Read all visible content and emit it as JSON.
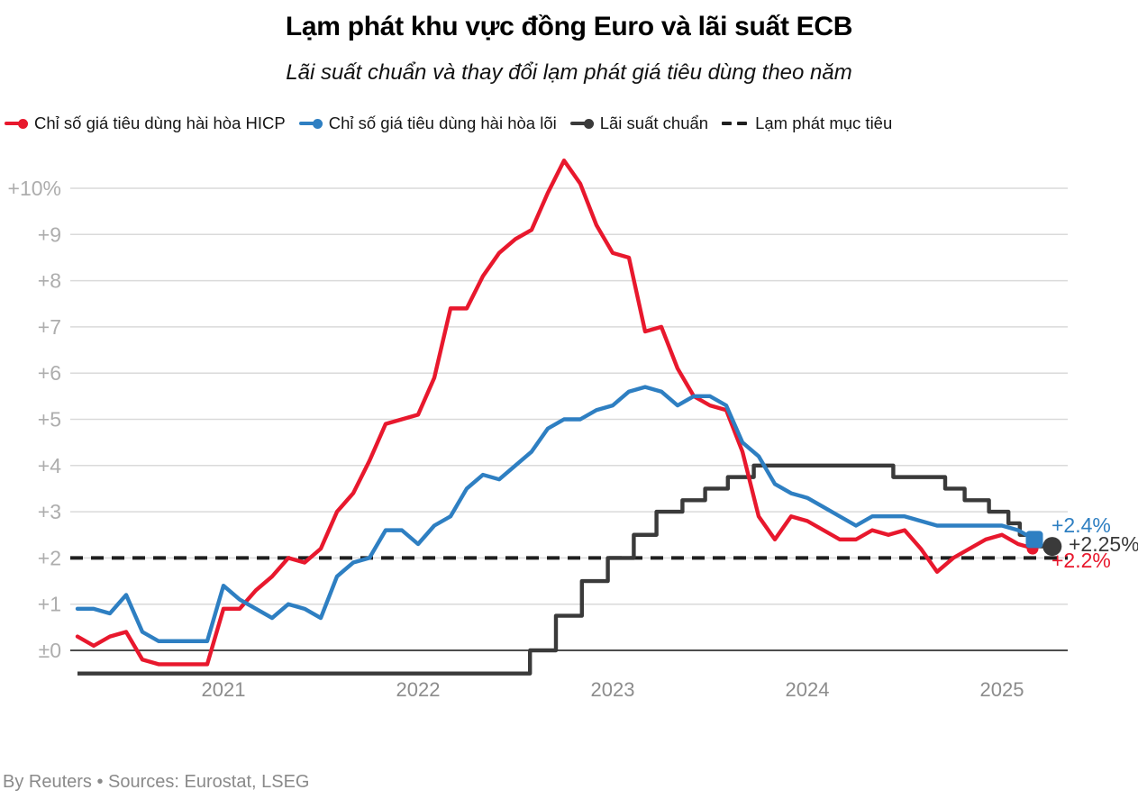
{
  "header": {
    "title": "Lạm phát khu vực đồng Euro và lãi suất ECB",
    "subtitle": "Lãi suất chuẩn và thay đổi lạm phát giá tiêu dùng theo năm"
  },
  "legend": [
    {
      "label": "Chỉ số giá tiêu dùng hài hòa HICP",
      "color": "#e8182d",
      "marker": "line-dot"
    },
    {
      "label": "Chỉ số giá tiêu dùng hài hòa lõi",
      "color": "#2e7fc2",
      "marker": "line-dot"
    },
    {
      "label": "Lãi suất chuẩn",
      "color": "#3a3a3a",
      "marker": "line-dot"
    },
    {
      "label": "Lạm phát mục tiêu",
      "color": "#1f1f1f",
      "marker": "dashes"
    }
  ],
  "chart_data": {
    "type": "line",
    "title": "Lạm phát khu vực đồng Euro và lãi suất ECB",
    "subtitle": "Lãi suất chuẩn và thay đổi lạm phát giá tiêu dùng theo năm",
    "x_start": "2020-04",
    "x_end": "2025-04",
    "grid": true,
    "legend_position": "top-left",
    "ylim": [
      -0.85,
      10.9
    ],
    "year_ticks": [
      {
        "label": "2021",
        "month_index": 9
      },
      {
        "label": "2022",
        "month_index": 21
      },
      {
        "label": "2023",
        "month_index": 33
      },
      {
        "label": "2024",
        "month_index": 45
      },
      {
        "label": "2025",
        "month_index": 57
      }
    ],
    "y_ticks": [
      {
        "label": "+10%",
        "value": 10
      },
      {
        "label": "+9",
        "value": 9
      },
      {
        "label": "+8",
        "value": 8
      },
      {
        "label": "+7",
        "value": 7
      },
      {
        "label": "+6",
        "value": 6
      },
      {
        "label": "+5",
        "value": 5
      },
      {
        "label": "+4",
        "value": 4
      },
      {
        "label": "+3",
        "value": 3
      },
      {
        "label": "+2",
        "value": 2
      },
      {
        "label": "+1",
        "value": 1
      },
      {
        "label": "±0",
        "value": 0
      }
    ],
    "target_line": {
      "label": "Lạm phát mục tiêu",
      "value": 2.0,
      "color": "#1f1f1f",
      "style": "dashed"
    },
    "series": [
      {
        "name": "Chỉ số giá tiêu dùng hài hòa HICP",
        "type": "line",
        "color": "#e8182d",
        "start_month_index": 0,
        "values": [
          0.3,
          0.1,
          0.3,
          0.4,
          -0.2,
          -0.3,
          -0.3,
          -0.3,
          -0.3,
          0.9,
          0.9,
          1.3,
          1.6,
          2.0,
          1.9,
          2.2,
          3.0,
          3.4,
          4.1,
          4.9,
          5.0,
          5.1,
          5.9,
          7.4,
          7.4,
          8.1,
          8.6,
          8.9,
          9.1,
          9.9,
          10.6,
          10.1,
          9.2,
          8.6,
          8.5,
          6.9,
          7.0,
          6.1,
          5.5,
          5.3,
          5.2,
          4.3,
          2.9,
          2.4,
          2.9,
          2.8,
          2.6,
          2.4,
          2.4,
          2.6,
          2.5,
          2.6,
          2.2,
          1.7,
          2.0,
          2.2,
          2.4,
          2.5,
          2.3,
          2.2
        ]
      },
      {
        "name": "Chỉ số giá tiêu dùng hài hòa lõi",
        "type": "line",
        "color": "#2e7fc2",
        "start_month_index": 0,
        "values": [
          0.9,
          0.9,
          0.8,
          1.2,
          0.4,
          0.2,
          0.2,
          0.2,
          0.2,
          1.4,
          1.1,
          0.9,
          0.7,
          1.0,
          0.9,
          0.7,
          1.6,
          1.9,
          2.0,
          2.6,
          2.6,
          2.3,
          2.7,
          2.9,
          3.5,
          3.8,
          3.7,
          4.0,
          4.3,
          4.8,
          5.0,
          5.0,
          5.2,
          5.3,
          5.6,
          5.7,
          5.6,
          5.3,
          5.5,
          5.5,
          5.3,
          4.5,
          4.2,
          3.6,
          3.4,
          3.3,
          3.1,
          2.9,
          2.7,
          2.9,
          2.9,
          2.9,
          2.8,
          2.7,
          2.7,
          2.7,
          2.7,
          2.7,
          2.6,
          2.4
        ]
      },
      {
        "name": "Lãi suất chuẩn",
        "type": "step",
        "color": "#3a3a3a",
        "points": [
          [
            0,
            -0.5
          ],
          [
            27.9,
            0.0
          ],
          [
            29.5,
            0.75
          ],
          [
            31.1,
            1.5
          ],
          [
            32.7,
            2.0
          ],
          [
            34.3,
            2.5
          ],
          [
            35.7,
            3.0
          ],
          [
            37.3,
            3.25
          ],
          [
            38.7,
            3.5
          ],
          [
            40.1,
            3.75
          ],
          [
            41.7,
            4.0
          ],
          [
            50.3,
            3.75
          ],
          [
            53.5,
            3.5
          ],
          [
            54.7,
            3.25
          ],
          [
            56.2,
            3.0
          ],
          [
            57.4,
            2.75
          ],
          [
            58.1,
            2.5
          ],
          [
            58.9,
            2.25
          ]
        ],
        "end_month_index": 60.1
      }
    ],
    "end_labels": [
      {
        "series": "Chỉ số giá tiêu dùng hài hòa lõi",
        "text": "+2.4%",
        "color": "#2e7fc2"
      },
      {
        "series": "Lãi suất chuẩn",
        "text": "+2.25%",
        "color": "#3a3a3a"
      },
      {
        "series": "Chỉ số giá tiêu dùng hài hòa HICP",
        "text": "+2.2%",
        "color": "#e8182d"
      }
    ]
  },
  "footer": {
    "credit": "By Reuters • Sources: Eurostat, LSEG"
  }
}
